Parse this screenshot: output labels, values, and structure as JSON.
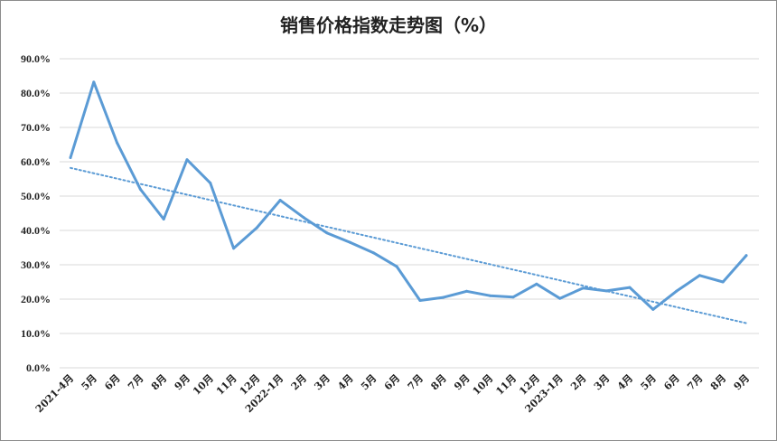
{
  "chart_data": {
    "type": "line",
    "title": "销售价格指数走势图（%）",
    "xlabel": "",
    "ylabel": "",
    "ylim": [
      0,
      90
    ],
    "y_ticks": [
      "90.0%",
      "80.0%",
      "70.0%",
      "60.0%",
      "50.0%",
      "40.0%",
      "30.0%",
      "20.0%",
      "10.0%",
      "0.0%"
    ],
    "grid": true,
    "legend": "none",
    "categories": [
      "2021-4月",
      "5月",
      "6月",
      "7月",
      "8月",
      "9月",
      "10月",
      "11月",
      "12月",
      "2022-1月",
      "2月",
      "3月",
      "4月",
      "5月",
      "6月",
      "7月",
      "8月",
      "9月",
      "10月",
      "11月",
      "12月",
      "2023-1月",
      "2月",
      "3月",
      "4月",
      "5月",
      "6月",
      "7月",
      "8月",
      "9月"
    ],
    "series": [
      {
        "values": [
          61.2,
          83.2,
          65.5,
          52.0,
          43.3,
          60.6,
          53.8,
          34.8,
          40.8,
          48.8,
          43.8,
          39.3,
          36.5,
          33.5,
          29.5,
          19.6,
          20.5,
          22.3,
          21.0,
          20.6,
          24.4,
          20.2,
          23.2,
          22.4,
          23.4,
          17.0,
          22.3,
          26.9,
          25.0,
          32.7
        ],
        "color": "#5b9bd5"
      }
    ],
    "trendline": {
      "type": "linear",
      "style": "dotted",
      "color": "#5b9bd5"
    }
  }
}
